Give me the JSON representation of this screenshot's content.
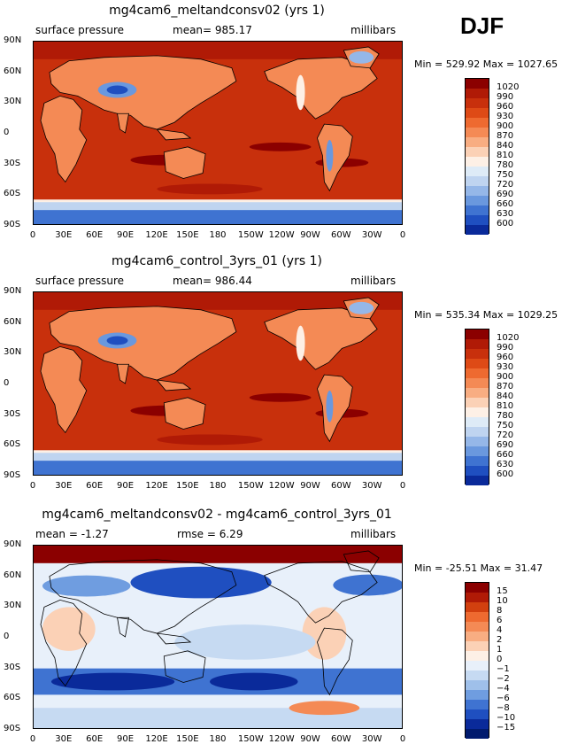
{
  "season": "DJF",
  "panels": [
    {
      "title": "mg4cam6_meltandconsv02 (yrs 1)",
      "left_label": "surface pressure",
      "center_label": "mean= 985.17",
      "right_label": "millibars",
      "minmax": "Min = 529.92 Max = 1027.65",
      "colorbar_labels": [
        "1020",
        "990",
        "960",
        "930",
        "900",
        "870",
        "840",
        "810",
        "780",
        "750",
        "720",
        "690",
        "660",
        "630",
        "600"
      ],
      "colorbar_colors": [
        "#8b0000",
        "#b01a06",
        "#c8300c",
        "#de4a16",
        "#ee6a30",
        "#f48a55",
        "#f8ad82",
        "#fbd1b6",
        "#fdf0e6",
        "#deebf7",
        "#bfd4f0",
        "#95b7e8",
        "#6a98de",
        "#3f73d1",
        "#1f4fc0",
        "#0a2a9a"
      ]
    },
    {
      "title": "mg4cam6_control_3yrs_01 (yrs 1)",
      "left_label": "surface pressure",
      "center_label": "mean= 986.44",
      "right_label": "millibars",
      "minmax": "Min = 535.34 Max = 1029.25",
      "colorbar_labels": [
        "1020",
        "990",
        "960",
        "930",
        "900",
        "870",
        "840",
        "810",
        "780",
        "750",
        "720",
        "690",
        "660",
        "630",
        "600"
      ],
      "colorbar_colors": [
        "#8b0000",
        "#b01a06",
        "#c8300c",
        "#de4a16",
        "#ee6a30",
        "#f48a55",
        "#f8ad82",
        "#fbd1b6",
        "#fdf0e6",
        "#deebf7",
        "#bfd4f0",
        "#95b7e8",
        "#6a98de",
        "#3f73d1",
        "#1f4fc0",
        "#0a2a9a"
      ]
    },
    {
      "title": "mg4cam6_meltandconsv02 - mg4cam6_control_3yrs_01",
      "left_label": "mean =  -1.27",
      "center_label": "rmse =   6.29",
      "right_label": "millibars",
      "minmax": "Min = -25.51 Max =  31.47",
      "colorbar_labels": [
        "15",
        "10",
        "8",
        "6",
        "4",
        "2",
        "1",
        "0",
        "−1",
        "−2",
        "−4",
        "−6",
        "−8",
        "−10",
        "−15"
      ],
      "colorbar_colors": [
        "#8b0000",
        "#b01a06",
        "#d2400f",
        "#ee6a30",
        "#f48a55",
        "#f8ad82",
        "#fbd1b6",
        "#fdf0e6",
        "#e8f0fa",
        "#c6daf2",
        "#9fc0ea",
        "#6f9de0",
        "#3f73d1",
        "#1f4fc0",
        "#0a2a9a",
        "#001a6e"
      ]
    }
  ],
  "lat_labels": [
    "90N",
    "60N",
    "30N",
    "0",
    "30S",
    "60S",
    "90S"
  ],
  "lon_labels": [
    "0",
    "30E",
    "60E",
    "90E",
    "120E",
    "150E",
    "180",
    "150W",
    "120W",
    "90W",
    "60W",
    "30W",
    "0"
  ]
}
